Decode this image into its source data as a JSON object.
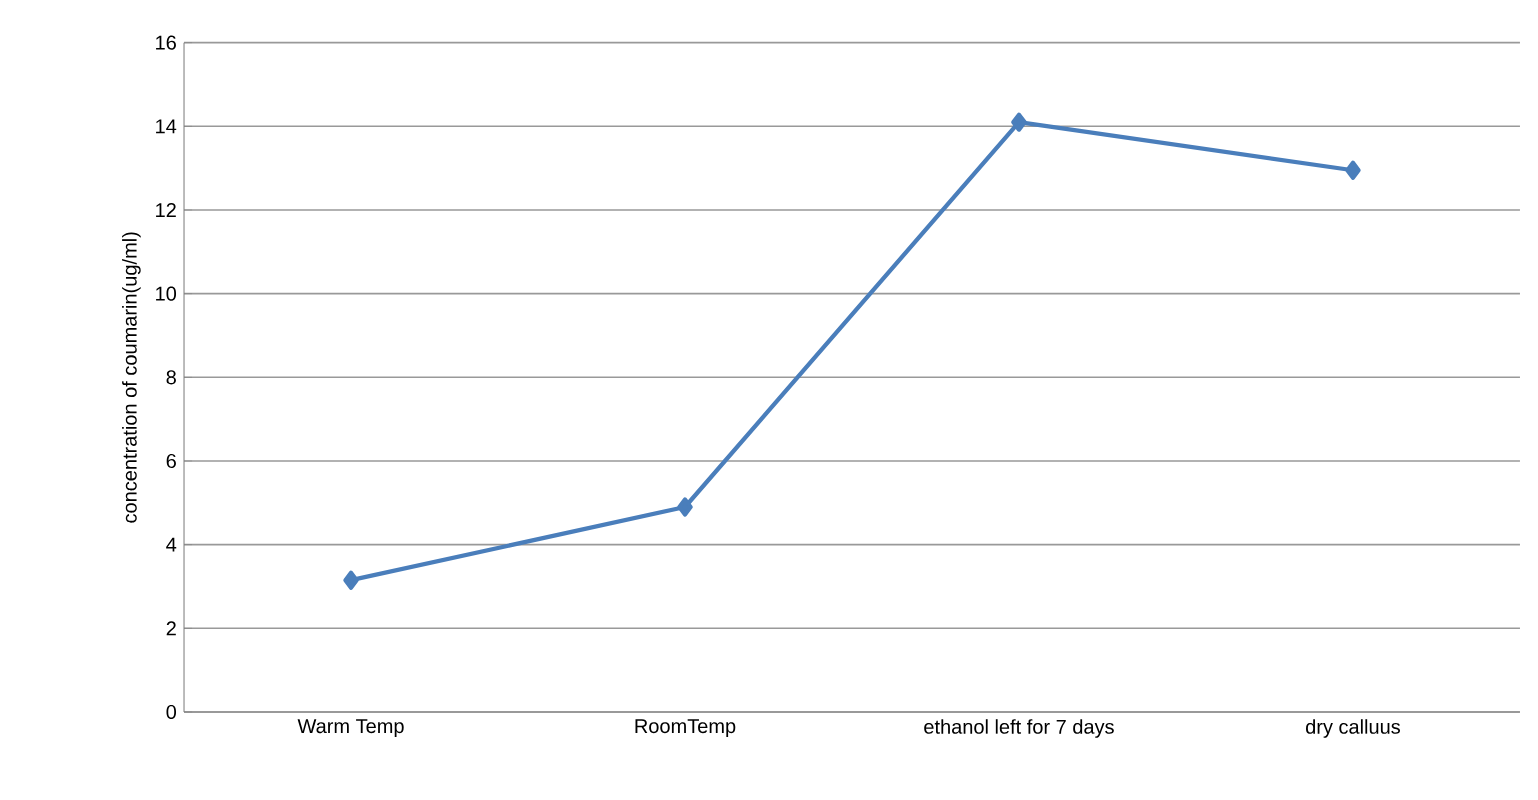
{
  "chart_data": {
    "type": "line",
    "ylabel": "concentration of coumarin(ug/ml)",
    "categories": [
      "Warm Temp",
      "RoomTemp",
      "ethanol left for 7 days",
      "dry calluus"
    ],
    "series": [
      {
        "color": "#4a7ebb",
        "values": [
          3.15,
          4.9,
          14.1,
          12.95
        ]
      }
    ],
    "ylim": [
      0,
      16
    ],
    "yticks": [
      0,
      2,
      4,
      6,
      8,
      10,
      12,
      14,
      16
    ],
    "grid": "y",
    "marker": "diamond",
    "line_style": "solid"
  }
}
